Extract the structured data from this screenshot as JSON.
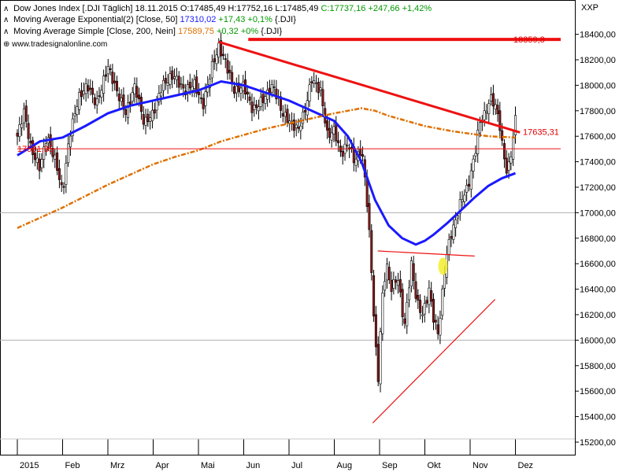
{
  "legend": {
    "line1": {
      "name": "Dow Jones Index [.DJI  Täglich] 18.11.2015",
      "open": "O:17485,49",
      "high": "H:17752,16",
      "low": "L:17485,49",
      "close": "C:17737,16",
      "chg": "+247,66",
      "pct": "+1,42%"
    },
    "line2": {
      "name": "Moving Average Exponential(2) [Close, 50]",
      "value": "17310,02",
      "chg": "+17,43",
      "pct": "+0,1%",
      "sym": "{.DJI}"
    },
    "line3": {
      "name": "Moving Average Simple [Close, 200, Nein]",
      "value": "17589,75",
      "chg": "+0,32",
      "pct": "+0%",
      "sym": "{.DJI}"
    }
  },
  "watermark": "www.tradesignalonline.com",
  "unit_label": "XXP",
  "colors": {
    "candle_up": "#ffffff",
    "candle_down": "#8b1a1a",
    "ema50": "#1a1aff",
    "sma200": "#e07000",
    "trend": "#ee1111",
    "grid": "#b0b0b0",
    "accent_yellow": "#f2ee30"
  },
  "chart_data": {
    "type": "candlestick",
    "title": "Dow Jones Index [.DJI  Täglich]",
    "ylim": [
      15200,
      18500
    ],
    "y_ticks": [
      15200,
      15400,
      15600,
      15800,
      16000,
      16200,
      16400,
      16600,
      16800,
      17000,
      17200,
      17400,
      17600,
      17800,
      18000,
      18200,
      18400
    ],
    "y_tick_labels": [
      "15200,00",
      "15400,00",
      "15600,00",
      "15800,00",
      "16000,00",
      "16200,00",
      "16400,00",
      "16600,00",
      "16800,00",
      "17000,00",
      "17200,00",
      "17400,00",
      "17600,00",
      "17800,00",
      "18000,00",
      "18200,00",
      "18400,00"
    ],
    "x_labels": [
      "2015",
      "Feb",
      "Mrz",
      "Apr",
      "Mai",
      "Jun",
      "Jul",
      "Aug",
      "Sep",
      "Okt",
      "Nov",
      "Dez"
    ],
    "x_label_months": [
      0,
      1,
      2,
      3,
      4,
      5,
      6,
      7,
      8,
      9,
      10,
      11
    ],
    "close_path": [
      [
        0.0,
        17600
      ],
      [
        0.15,
        17800
      ],
      [
        0.3,
        17500
      ],
      [
        0.5,
        17350
      ],
      [
        0.65,
        17600
      ],
      [
        0.85,
        17400
      ],
      [
        1.0,
        17150
      ],
      [
        1.15,
        17600
      ],
      [
        1.35,
        17900
      ],
      [
        1.55,
        18000
      ],
      [
        1.75,
        17850
      ],
      [
        2.0,
        18150
      ],
      [
        2.2,
        17950
      ],
      [
        2.4,
        17780
      ],
      [
        2.6,
        18000
      ],
      [
        2.8,
        17700
      ],
      [
        3.0,
        17780
      ],
      [
        3.2,
        18000
      ],
      [
        3.45,
        18080
      ],
      [
        3.7,
        17950
      ],
      [
        3.9,
        18020
      ],
      [
        4.1,
        17840
      ],
      [
        4.3,
        18150
      ],
      [
        4.45,
        18300
      ],
      [
        4.6,
        18180
      ],
      [
        4.8,
        17950
      ],
      [
        5.0,
        18000
      ],
      [
        5.2,
        17800
      ],
      [
        5.45,
        17900
      ],
      [
        5.65,
        18000
      ],
      [
        5.85,
        17780
      ],
      [
        6.05,
        17700
      ],
      [
        6.2,
        17650
      ],
      [
        6.35,
        17800
      ],
      [
        6.5,
        18050
      ],
      [
        6.7,
        17950
      ],
      [
        6.85,
        17600
      ],
      [
        7.0,
        17650
      ],
      [
        7.15,
        17450
      ],
      [
        7.3,
        17550
      ],
      [
        7.45,
        17400
      ],
      [
        7.6,
        17500
      ],
      [
        7.7,
        17200
      ],
      [
        7.8,
        16700
      ],
      [
        7.9,
        16000
      ],
      [
        7.97,
        15700
      ],
      [
        8.05,
        16300
      ],
      [
        8.15,
        16600
      ],
      [
        8.25,
        16400
      ],
      [
        8.4,
        16500
      ],
      [
        8.55,
        16100
      ],
      [
        8.7,
        16600
      ],
      [
        8.82,
        16300
      ],
      [
        8.95,
        16200
      ],
      [
        9.1,
        16400
      ],
      [
        9.2,
        16150
      ],
      [
        9.3,
        16050
      ],
      [
        9.45,
        16600
      ],
      [
        9.55,
        16800
      ],
      [
        9.65,
        16900
      ],
      [
        9.8,
        17100
      ],
      [
        9.95,
        17200
      ],
      [
        10.1,
        17450
      ],
      [
        10.2,
        17700
      ],
      [
        10.3,
        17750
      ],
      [
        10.45,
        17900
      ],
      [
        10.55,
        17850
      ],
      [
        10.65,
        17700
      ],
      [
        10.72,
        17500
      ],
      [
        10.82,
        17300
      ],
      [
        10.92,
        17500
      ],
      [
        11.0,
        17737
      ]
    ],
    "series": [
      {
        "name": "Moving Average Exponential(2) [Close, 50]",
        "x": [
          0.0,
          0.5,
          1.0,
          1.5,
          2.0,
          2.5,
          3.0,
          3.5,
          4.0,
          4.5,
          5.0,
          5.5,
          6.0,
          6.5,
          7.0,
          7.3,
          7.6,
          7.9,
          8.2,
          8.5,
          8.8,
          9.0,
          9.2,
          9.5,
          9.8,
          10.1,
          10.4,
          10.7,
          11.0
        ],
        "values": [
          17450,
          17560,
          17590,
          17680,
          17780,
          17840,
          17880,
          17920,
          17960,
          18030,
          18000,
          17940,
          17880,
          17800,
          17720,
          17600,
          17400,
          17100,
          16900,
          16800,
          16750,
          16780,
          16830,
          16920,
          17020,
          17120,
          17210,
          17270,
          17310
        ]
      },
      {
        "name": "Moving Average Simple [Close, 200, Nein]",
        "x": [
          0.0,
          0.5,
          1.0,
          1.5,
          2.0,
          2.5,
          3.0,
          3.5,
          4.0,
          4.5,
          5.0,
          5.5,
          6.0,
          6.5,
          7.0,
          7.3,
          7.6,
          7.9,
          8.2,
          8.5,
          8.8,
          9.0,
          9.3,
          9.6,
          10.0,
          10.4,
          10.7,
          11.0
        ],
        "values": [
          16880,
          16960,
          17040,
          17130,
          17220,
          17300,
          17380,
          17440,
          17490,
          17560,
          17610,
          17660,
          17700,
          17740,
          17780,
          17800,
          17820,
          17800,
          17760,
          17730,
          17700,
          17680,
          17660,
          17640,
          17620,
          17600,
          17595,
          17590
        ]
      }
    ],
    "value_labels": [
      "18359,8",
      "17635,31",
      "17501,35"
    ],
    "reference_lines": [
      {
        "type": "horizontal",
        "y": 18359.8,
        "x_from": 5.1,
        "x_to": 12.0
      },
      {
        "type": "horizontal",
        "y": 17501.35,
        "x_from": 0.0,
        "x_to": 12.0
      },
      {
        "type": "trendline",
        "points": [
          [
            4.45,
            18340
          ],
          [
            11.1,
            17630
          ]
        ]
      },
      {
        "type": "trendline",
        "points": [
          [
            7.96,
            16700
          ],
          [
            10.1,
            16660
          ]
        ]
      },
      {
        "type": "trendline",
        "points": [
          [
            7.85,
            15350
          ],
          [
            10.55,
            16320
          ]
        ]
      }
    ]
  }
}
